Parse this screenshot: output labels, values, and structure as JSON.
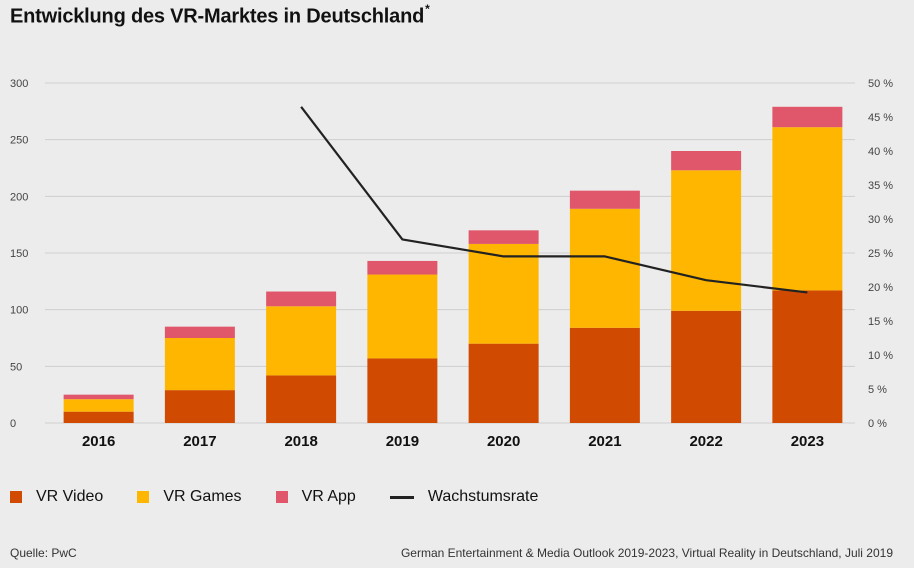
{
  "title": "Entwicklung des VR-Marktes in Deutschland",
  "title_marker": "*",
  "footer": {
    "source": "Quelle: PwC",
    "citation": "German Entertainment & Media Outlook 2019-2023, Virtual Reality in Deutschland, Juli 2019"
  },
  "colors": {
    "vr_video": "#d04a02",
    "vr_games": "#ffb600",
    "vr_app": "#e0576b",
    "growth": "#222222",
    "grid": "#cfcfcf",
    "background": "#ececec"
  },
  "legend": [
    {
      "label": "VR Video",
      "key": "vr_video"
    },
    {
      "label": "VR Games",
      "key": "vr_games"
    },
    {
      "label": "VR App",
      "key": "vr_app"
    },
    {
      "label": "Wachstumsrate",
      "key": "growth",
      "type": "line"
    }
  ],
  "chart_data": {
    "type": "bar",
    "stacked": true,
    "categories": [
      "2016",
      "2017",
      "2018",
      "2019",
      "2020",
      "2021",
      "2022",
      "2023"
    ],
    "series": [
      {
        "name": "VR Video",
        "values": [
          10,
          29,
          42,
          57,
          70,
          84,
          99,
          117
        ]
      },
      {
        "name": "VR Games",
        "values": [
          11,
          46,
          61,
          74,
          88,
          105,
          124,
          144
        ]
      },
      {
        "name": "VR App",
        "values": [
          4,
          10,
          13,
          12,
          12,
          16,
          17,
          18
        ]
      }
    ],
    "line_series": {
      "name": "Wachstumsrate",
      "axis": "right",
      "values": [
        null,
        null,
        46.5,
        27,
        24.5,
        24.5,
        21,
        19.2
      ]
    },
    "y_left": {
      "min": 0,
      "max": 300,
      "ticks": [
        0,
        50,
        100,
        150,
        200,
        250,
        300
      ]
    },
    "y_right": {
      "min": 0,
      "max": 50,
      "ticks": [
        "0 %",
        "5 %",
        "10 %",
        "15 %",
        "20 %",
        "25 %",
        "30 %",
        "35 %",
        "40 %",
        "45 %",
        "50 %"
      ]
    },
    "grid": true,
    "legend_position": "bottom-left"
  }
}
